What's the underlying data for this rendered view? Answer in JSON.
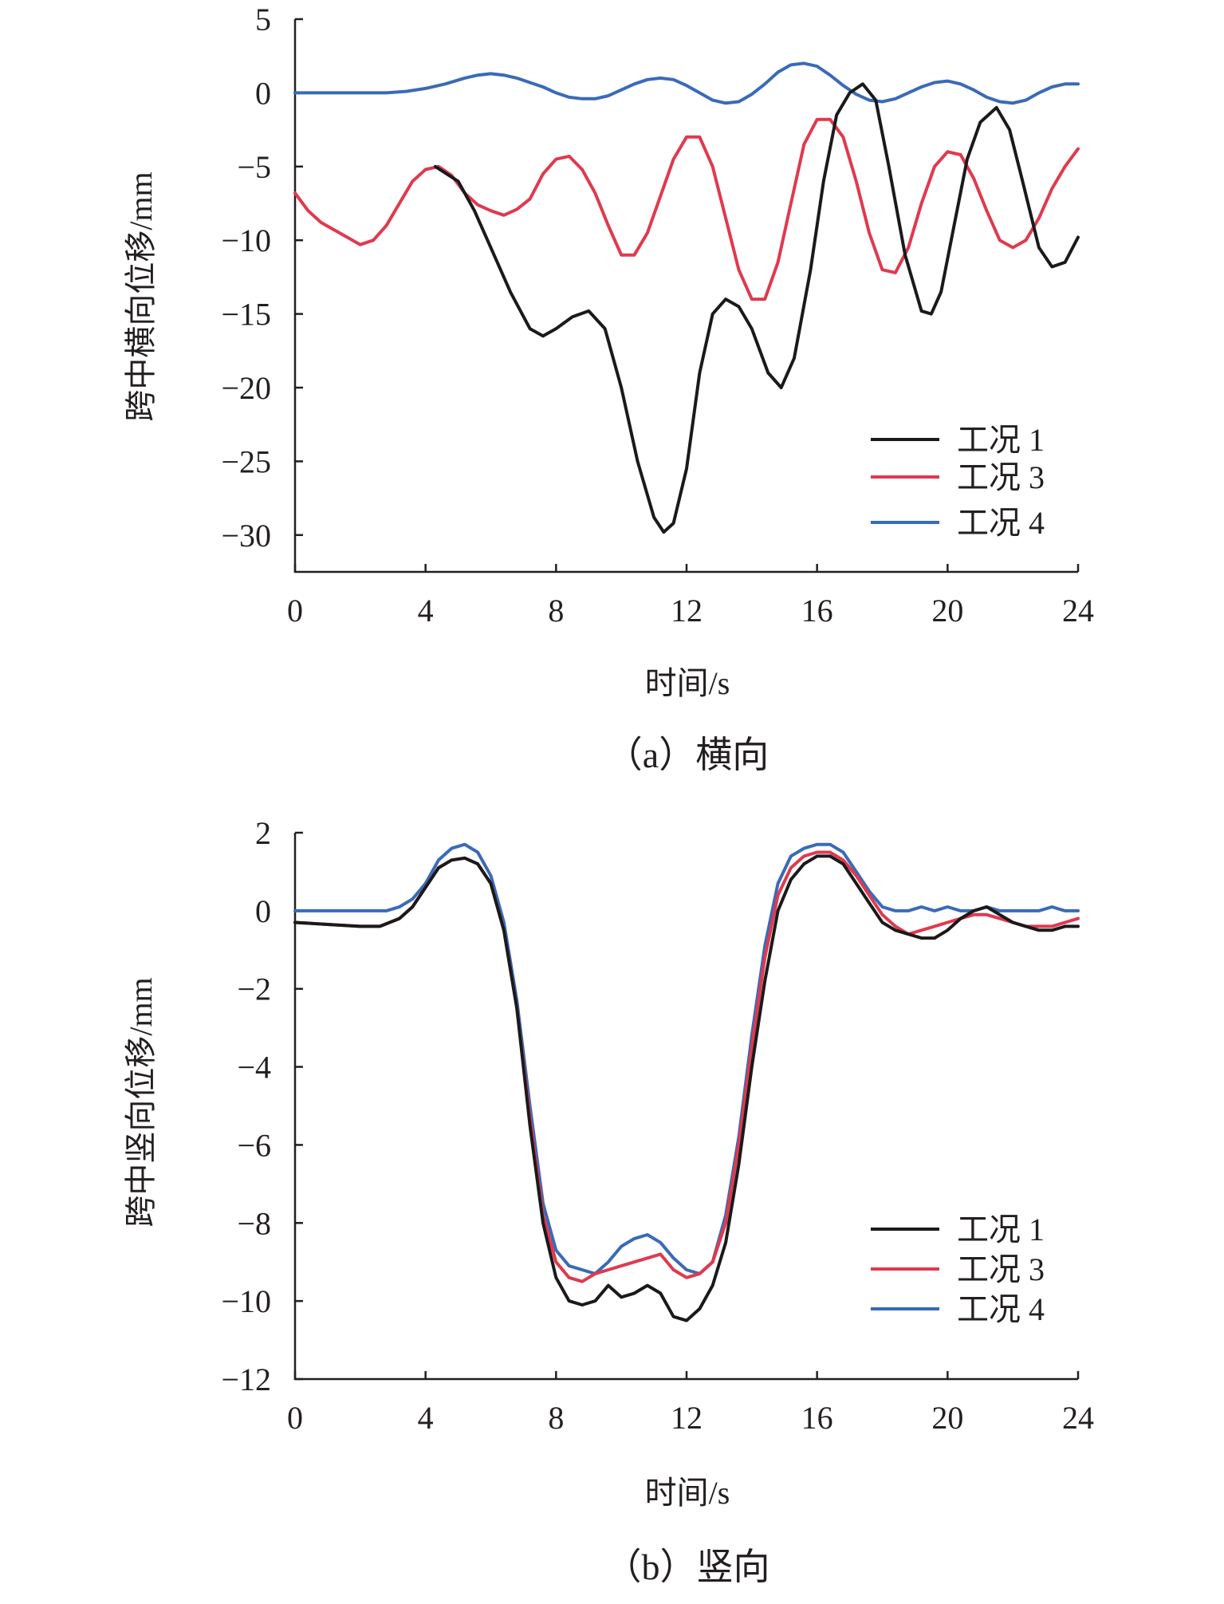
{
  "colors": {
    "s1": "#1a1a1a",
    "s3": "#e0394e",
    "s4": "#3a6ab8",
    "axis": "#231f20"
  },
  "chart_data": [
    {
      "type": "line",
      "caption": "（a）横向",
      "xlabel": "时间/s",
      "ylabel": "跨中横向位移/mm",
      "xlim": [
        0,
        24
      ],
      "ylim": [
        -32.5,
        5
      ],
      "xticks": [
        "0",
        "4",
        "8",
        "12",
        "16",
        "20",
        "24"
      ],
      "yticks": [
        "5",
        "0",
        "−5",
        "−10",
        "−15",
        "−20",
        "−25",
        "−30"
      ],
      "legend_position": "bottom-right",
      "series": [
        {
          "name": "工况 1",
          "color": "#1a1a1a",
          "x": [
            4.3,
            5.0,
            5.5,
            6.0,
            6.6,
            7.2,
            7.6,
            8.0,
            8.5,
            9.0,
            9.5,
            10.0,
            10.5,
            11.0,
            11.3,
            11.6,
            12.0,
            12.4,
            12.8,
            13.2,
            13.6,
            14.0,
            14.5,
            14.9,
            15.3,
            15.8,
            16.2,
            16.6,
            17.0,
            17.4,
            17.8,
            18.2,
            18.7,
            19.2,
            19.5,
            19.8,
            20.2,
            20.6,
            21.0,
            21.5,
            21.9,
            22.3,
            22.8,
            23.2,
            23.6,
            24.0
          ],
          "y": [
            -5.0,
            -6.0,
            -8.0,
            -10.5,
            -13.5,
            -16.0,
            -16.5,
            -16.0,
            -15.2,
            -14.8,
            -16.0,
            -20.0,
            -25.0,
            -28.8,
            -29.8,
            -29.2,
            -25.5,
            -19.0,
            -15.0,
            -14.0,
            -14.5,
            -16.0,
            -19.0,
            -20.0,
            -18.0,
            -12.0,
            -6.0,
            -1.5,
            0.0,
            0.6,
            -0.5,
            -5.0,
            -11.0,
            -14.8,
            -15.0,
            -13.5,
            -9.0,
            -4.5,
            -2.0,
            -1.0,
            -2.5,
            -6.0,
            -10.5,
            -11.8,
            -11.5,
            -9.8
          ]
        },
        {
          "name": "工况 3",
          "color": "#e0394e",
          "x": [
            0.0,
            0.4,
            0.8,
            1.2,
            1.6,
            2.0,
            2.4,
            2.8,
            3.2,
            3.6,
            4.0,
            4.4,
            4.8,
            5.2,
            5.6,
            6.0,
            6.4,
            6.8,
            7.2,
            7.6,
            8.0,
            8.4,
            8.8,
            9.2,
            9.6,
            10.0,
            10.4,
            10.8,
            11.2,
            11.6,
            12.0,
            12.4,
            12.8,
            13.2,
            13.6,
            14.0,
            14.4,
            14.8,
            15.2,
            15.6,
            16.0,
            16.4,
            16.8,
            17.2,
            17.6,
            18.0,
            18.4,
            18.8,
            19.2,
            19.6,
            20.0,
            20.4,
            20.8,
            21.2,
            21.6,
            22.0,
            22.4,
            22.8,
            23.2,
            23.6,
            24.0
          ],
          "y": [
            -6.8,
            -8.0,
            -8.8,
            -9.3,
            -9.8,
            -10.3,
            -10.0,
            -9.0,
            -7.5,
            -6.0,
            -5.2,
            -5.0,
            -5.6,
            -6.8,
            -7.6,
            -8.0,
            -8.3,
            -7.9,
            -7.2,
            -5.5,
            -4.5,
            -4.3,
            -5.2,
            -6.8,
            -9.0,
            -11.0,
            -11.0,
            -9.5,
            -7.0,
            -4.5,
            -3.0,
            -3.0,
            -5.0,
            -8.5,
            -12.0,
            -14.0,
            -14.0,
            -11.5,
            -7.5,
            -3.5,
            -1.8,
            -1.8,
            -3.0,
            -6.0,
            -9.5,
            -12.0,
            -12.2,
            -10.5,
            -7.5,
            -5.0,
            -4.0,
            -4.2,
            -5.8,
            -8.0,
            -10.0,
            -10.5,
            -10.0,
            -8.5,
            -6.5,
            -5.0,
            -3.8
          ]
        },
        {
          "name": "工况 4",
          "color": "#3a6ab8",
          "x": [
            0.0,
            1.0,
            2.0,
            2.8,
            3.4,
            4.0,
            4.6,
            5.2,
            5.6,
            6.0,
            6.4,
            6.8,
            7.2,
            7.6,
            8.0,
            8.4,
            8.8,
            9.2,
            9.6,
            10.0,
            10.4,
            10.8,
            11.2,
            11.6,
            12.0,
            12.4,
            12.8,
            13.2,
            13.6,
            14.0,
            14.4,
            14.8,
            15.2,
            15.6,
            16.0,
            16.4,
            16.8,
            17.2,
            17.6,
            18.0,
            18.4,
            18.8,
            19.2,
            19.6,
            20.0,
            20.4,
            20.8,
            21.2,
            21.6,
            22.0,
            22.4,
            22.8,
            23.2,
            23.6,
            24.0
          ],
          "y": [
            0.0,
            0.0,
            0.0,
            0.0,
            0.1,
            0.3,
            0.6,
            1.0,
            1.2,
            1.3,
            1.2,
            1.0,
            0.7,
            0.4,
            0.0,
            -0.3,
            -0.4,
            -0.4,
            -0.2,
            0.2,
            0.6,
            0.9,
            1.0,
            0.9,
            0.5,
            0.0,
            -0.5,
            -0.7,
            -0.6,
            -0.1,
            0.6,
            1.4,
            1.9,
            2.0,
            1.8,
            1.2,
            0.5,
            -0.1,
            -0.5,
            -0.6,
            -0.4,
            0.0,
            0.4,
            0.7,
            0.8,
            0.6,
            0.2,
            -0.3,
            -0.6,
            -0.7,
            -0.5,
            0.0,
            0.4,
            0.6,
            0.6
          ]
        }
      ]
    },
    {
      "type": "line",
      "caption": "（b）竖向",
      "xlabel": "时间/s",
      "ylabel": "跨中竖向位移/mm",
      "xlim": [
        0,
        24
      ],
      "ylim": [
        -12,
        2
      ],
      "xticks": [
        "0",
        "4",
        "8",
        "12",
        "16",
        "20",
        "24"
      ],
      "yticks": [
        "2",
        "0",
        "−2",
        "−4",
        "−6",
        "−8",
        "−10",
        "−12"
      ],
      "legend_position": "bottom-right",
      "series": [
        {
          "name": "工况 1",
          "color": "#1a1a1a",
          "x": [
            0.0,
            1.0,
            2.0,
            2.6,
            3.2,
            3.6,
            4.0,
            4.4,
            4.8,
            5.2,
            5.6,
            6.0,
            6.4,
            6.8,
            7.2,
            7.6,
            8.0,
            8.4,
            8.8,
            9.2,
            9.6,
            10.0,
            10.4,
            10.8,
            11.2,
            11.6,
            12.0,
            12.4,
            12.8,
            13.2,
            13.6,
            14.0,
            14.4,
            14.8,
            15.2,
            15.6,
            16.0,
            16.4,
            16.8,
            17.2,
            17.6,
            18.0,
            18.4,
            18.8,
            19.2,
            19.6,
            20.0,
            20.4,
            20.8,
            21.2,
            21.6,
            22.0,
            22.4,
            22.8,
            23.2,
            23.6,
            24.0
          ],
          "y": [
            -0.3,
            -0.35,
            -0.4,
            -0.4,
            -0.2,
            0.1,
            0.6,
            1.1,
            1.3,
            1.35,
            1.2,
            0.7,
            -0.5,
            -2.5,
            -5.5,
            -8.0,
            -9.4,
            -10.0,
            -10.1,
            -10.0,
            -9.6,
            -9.9,
            -9.8,
            -9.6,
            -9.8,
            -10.4,
            -10.5,
            -10.2,
            -9.6,
            -8.5,
            -6.5,
            -4.0,
            -1.8,
            0.0,
            0.8,
            1.2,
            1.4,
            1.4,
            1.2,
            0.7,
            0.2,
            -0.3,
            -0.5,
            -0.6,
            -0.7,
            -0.7,
            -0.5,
            -0.2,
            0.0,
            0.1,
            -0.1,
            -0.3,
            -0.4,
            -0.5,
            -0.5,
            -0.4,
            -0.4
          ]
        },
        {
          "name": "工况 3",
          "color": "#e0394e",
          "x": [
            0.0,
            1.0,
            2.0,
            2.6,
            3.2,
            3.6,
            4.0,
            4.4,
            4.8,
            5.2,
            5.6,
            6.0,
            6.4,
            6.8,
            7.2,
            7.6,
            8.0,
            8.4,
            8.8,
            9.2,
            9.6,
            10.0,
            10.4,
            10.8,
            11.2,
            11.6,
            12.0,
            12.4,
            12.8,
            13.2,
            13.6,
            14.0,
            14.4,
            14.8,
            15.2,
            15.6,
            16.0,
            16.4,
            16.8,
            17.2,
            17.6,
            18.0,
            18.4,
            18.8,
            19.2,
            19.6,
            20.0,
            20.4,
            20.8,
            21.2,
            21.6,
            22.0,
            22.4,
            22.8,
            23.2,
            23.6,
            24.0
          ],
          "y": [
            -0.3,
            -0.35,
            -0.4,
            -0.4,
            -0.2,
            0.1,
            0.6,
            1.1,
            1.3,
            1.35,
            1.2,
            0.7,
            -0.5,
            -2.5,
            -5.3,
            -7.8,
            -9.0,
            -9.4,
            -9.5,
            -9.3,
            -9.2,
            -9.1,
            -9.0,
            -8.9,
            -8.8,
            -9.2,
            -9.4,
            -9.3,
            -9.0,
            -8.0,
            -6.0,
            -3.5,
            -1.2,
            0.4,
            1.1,
            1.4,
            1.5,
            1.5,
            1.3,
            0.9,
            0.4,
            -0.1,
            -0.4,
            -0.6,
            -0.5,
            -0.4,
            -0.3,
            -0.2,
            -0.1,
            -0.1,
            -0.2,
            -0.3,
            -0.4,
            -0.4,
            -0.4,
            -0.3,
            -0.2
          ]
        },
        {
          "name": "工况 4",
          "color": "#3a6ab8",
          "x": [
            0.0,
            1.0,
            2.0,
            2.8,
            3.2,
            3.6,
            4.0,
            4.4,
            4.8,
            5.2,
            5.6,
            6.0,
            6.4,
            6.8,
            7.2,
            7.6,
            8.0,
            8.4,
            8.8,
            9.2,
            9.6,
            10.0,
            10.4,
            10.8,
            11.2,
            11.6,
            12.0,
            12.4,
            12.8,
            13.2,
            13.6,
            14.0,
            14.4,
            14.8,
            15.2,
            15.6,
            16.0,
            16.4,
            16.8,
            17.2,
            17.6,
            18.0,
            18.4,
            18.8,
            19.2,
            19.6,
            20.0,
            20.4,
            20.8,
            21.2,
            21.6,
            22.0,
            22.4,
            22.8,
            23.2,
            23.6,
            24.0
          ],
          "y": [
            0.0,
            0.0,
            0.0,
            0.0,
            0.1,
            0.3,
            0.7,
            1.3,
            1.6,
            1.7,
            1.5,
            0.9,
            -0.3,
            -2.3,
            -5.0,
            -7.5,
            -8.7,
            -9.1,
            -9.2,
            -9.3,
            -9.0,
            -8.6,
            -8.4,
            -8.3,
            -8.5,
            -8.9,
            -9.2,
            -9.3,
            -9.0,
            -7.8,
            -5.8,
            -3.2,
            -0.9,
            0.7,
            1.4,
            1.6,
            1.7,
            1.7,
            1.5,
            1.0,
            0.5,
            0.1,
            0.0,
            0.0,
            0.1,
            0.0,
            0.1,
            0.0,
            0.0,
            0.1,
            0.0,
            0.0,
            0.0,
            0.0,
            0.1,
            0.0,
            0.0
          ]
        }
      ]
    }
  ]
}
